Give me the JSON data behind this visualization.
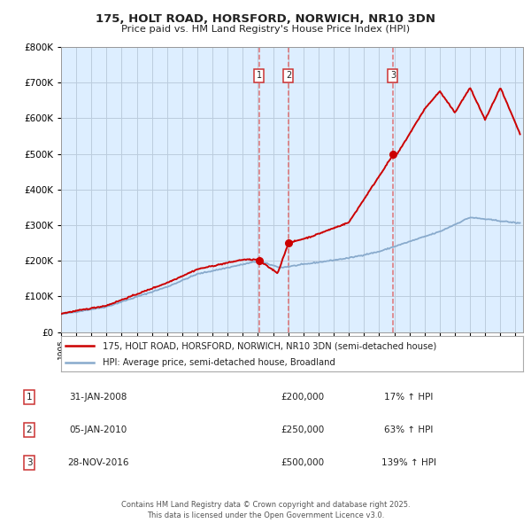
{
  "title_line1": "175, HOLT ROAD, HORSFORD, NORWICH, NR10 3DN",
  "title_line2": "Price paid vs. HM Land Registry's House Price Index (HPI)",
  "legend_label1": "175, HOLT ROAD, HORSFORD, NORWICH, NR10 3DN (semi-detached house)",
  "legend_label2": "HPI: Average price, semi-detached house, Broadland",
  "transactions": [
    {
      "num": 1,
      "date": "31-JAN-2008",
      "price": "£200,000",
      "hpi_pct": "17% ↑ HPI",
      "year": 2008.08
    },
    {
      "num": 2,
      "date": "05-JAN-2010",
      "price": "£250,000",
      "hpi_pct": "63% ↑ HPI",
      "year": 2010.01
    },
    {
      "num": 3,
      "date": "28-NOV-2016",
      "price": "£500,000",
      "hpi_pct": "139% ↑ HPI",
      "year": 2016.91
    }
  ],
  "vline_color": "#dd6666",
  "hpi_line_color": "#88aacc",
  "price_line_color": "#cc0000",
  "chart_bg_color": "#ddeeff",
  "background_color": "#ffffff",
  "grid_color": "#bbccdd",
  "ylim": [
    0,
    800000
  ],
  "yticks": [
    0,
    100000,
    200000,
    300000,
    400000,
    500000,
    600000,
    700000,
    800000
  ],
  "footer": "Contains HM Land Registry data © Crown copyright and database right 2025.\nThis data is licensed under the Open Government Licence v3.0."
}
